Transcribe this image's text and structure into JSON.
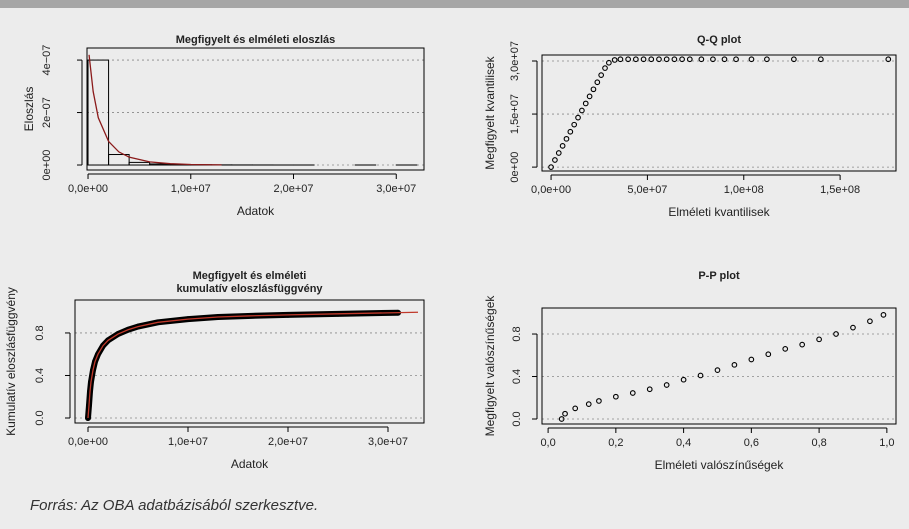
{
  "chart_data": [
    {
      "type": "histogram",
      "title": "Megfigyelt és elméleti eloszlás",
      "x_label": "Adatok",
      "y_label": "Eloszlás",
      "bins": [
        0,
        2000000,
        4000000,
        6000000,
        8000000,
        10000000,
        12000000,
        14000000,
        16000000,
        18000000,
        20000000,
        22000000,
        24000000,
        26000000,
        28000000,
        30000000,
        32000000
      ],
      "values": [
        4e-07,
        4e-08,
        1e-08,
        4e-09,
        2e-09,
        1e-09,
        5e-10,
        3e-10,
        2e-10,
        1e-10,
        1e-10,
        0,
        0,
        1e-10,
        0,
        1e-10
      ],
      "color": "#000000",
      "series": [
        {
          "type": "line",
          "color": "#8b1a1a",
          "x": [
            100000,
            500000,
            1000000,
            2000000,
            3000000,
            4000000,
            6000000,
            8000000,
            10000000,
            13000000
          ],
          "values": [
            4.2e-07,
            2.8e-07,
            1.8e-07,
            9e-08,
            5e-08,
            3e-08,
            1.2e-08,
            5e-09,
            2e-09,
            5e-10
          ]
        }
      ],
      "xlim": [
        -100000,
        32700000
      ],
      "ylim": [
        -1.9e-08,
        4.46e-07
      ],
      "xticks": [
        {
          "value": 0,
          "label": "0,0e+00"
        },
        {
          "value": 10000000,
          "label": "1,0e+07"
        },
        {
          "value": 20000000,
          "label": "2,0e+07"
        },
        {
          "value": 30000000,
          "label": "3,0e+07"
        }
      ],
      "yticks": [
        {
          "value": 0,
          "label": "0e+00"
        },
        {
          "value": 2e-07,
          "label": "2e−07"
        },
        {
          "value": 4e-07,
          "label": "4e−07"
        }
      ],
      "grid": true
    },
    {
      "type": "scatter",
      "title": "Q-Q plot",
      "x_label": "Elméleti kvantilisek",
      "y_label": "Megfigyelt kvantilisek",
      "series": [
        {
          "type": "scatter",
          "color": "#000000",
          "x": [
            0,
            2000000,
            4000000,
            6000000,
            8000000,
            10000000,
            12000000,
            14000000,
            16000000,
            18000000,
            20000000,
            22000000,
            24000000,
            26000000,
            28000000,
            30000000,
            33000000,
            36000000,
            40000000,
            44000000,
            48000000,
            52000000,
            56000000,
            60000000,
            64000000,
            68000000,
            72000000,
            78000000,
            84000000,
            90000000,
            96000000,
            104000000,
            112000000,
            126000000,
            140000000,
            175000000
          ],
          "values": [
            0,
            2000000,
            4000000,
            6000000,
            8000000,
            10000000,
            12000000,
            14000000,
            16000000,
            18000000,
            20000000,
            22000000,
            24000000,
            26000000,
            28000000,
            29500000,
            30300000,
            30500000,
            30500000,
            30500000,
            30500000,
            30500000,
            30500000,
            30500000,
            30500000,
            30500000,
            30500000,
            30500000,
            30500000,
            30500000,
            30500000,
            30500000,
            30500000,
            30500000,
            30500000,
            30500000
          ]
        }
      ],
      "xlim": [
        -4700000,
        179000000
      ],
      "ylim": [
        -1100000,
        31700000
      ],
      "xticks": [
        {
          "value": 0,
          "label": "0,0e+00"
        },
        {
          "value": 50000000,
          "label": "5,0e+07"
        },
        {
          "value": 100000000,
          "label": "1,0e+08"
        },
        {
          "value": 150000000,
          "label": "1,5e+08"
        }
      ],
      "yticks": [
        {
          "value": 0,
          "label": "0e+00"
        },
        {
          "value": 15000000,
          "label": "1,5e+07"
        },
        {
          "value": 30000000,
          "label": "3,0e+07"
        }
      ],
      "grid": true
    },
    {
      "type": "scatter",
      "title": [
        "Megfigyelt és elméleti",
        "kumulatív eloszlásfüggvény"
      ],
      "x_label": "Adatok",
      "y_label": "Kumulatív eloszlásfüggvény",
      "series": [
        {
          "type": "scatter",
          "color": "#000000",
          "x": [
            0,
            100000,
            200000,
            300000,
            500000,
            700000,
            1000000,
            1500000,
            2000000,
            3000000,
            4000000,
            5000000,
            7000000,
            10000000,
            13000000,
            16000000,
            20000000,
            25000000,
            31000000
          ],
          "values": [
            0,
            0.12,
            0.25,
            0.34,
            0.45,
            0.53,
            0.6,
            0.68,
            0.73,
            0.79,
            0.83,
            0.86,
            0.9,
            0.93,
            0.95,
            0.96,
            0.97,
            0.98,
            0.99
          ]
        },
        {
          "type": "line",
          "color": "#c0392b",
          "x": [
            0,
            100000,
            200000,
            300000,
            500000,
            700000,
            1000000,
            1500000,
            2000000,
            3000000,
            4000000,
            5000000,
            7000000,
            10000000,
            13000000,
            16000000,
            20000000,
            25000000,
            33000000
          ],
          "values": [
            0,
            0.12,
            0.25,
            0.34,
            0.45,
            0.53,
            0.6,
            0.68,
            0.73,
            0.79,
            0.83,
            0.86,
            0.9,
            0.93,
            0.95,
            0.96,
            0.97,
            0.98,
            0.995
          ]
        }
      ],
      "xlim": [
        -1300000,
        33600000
      ],
      "ylim": [
        -0.047,
        1.11
      ],
      "xticks": [
        {
          "value": 0,
          "label": "0,0e+00"
        },
        {
          "value": 10000000,
          "label": "1,0e+07"
        },
        {
          "value": 20000000,
          "label": "2,0e+07"
        },
        {
          "value": 30000000,
          "label": "3,0e+07"
        }
      ],
      "yticks": [
        {
          "value": 0,
          "label": "0.0"
        },
        0.4,
        0.8
      ],
      "grid": true
    },
    {
      "type": "scatter",
      "title": "P-P plot",
      "x_label": "Elméleti valószínűségek",
      "y_label": "Megfigyelt valószínűségek",
      "series": [
        {
          "type": "scatter",
          "color": "#000000",
          "x": [
            0.04,
            0.05,
            0.08,
            0.12,
            0.15,
            0.2,
            0.25,
            0.3,
            0.35,
            0.4,
            0.45,
            0.5,
            0.55,
            0.6,
            0.65,
            0.7,
            0.75,
            0.8,
            0.85,
            0.9,
            0.95,
            0.99
          ],
          "values": [
            0,
            0.05,
            0.1,
            0.14,
            0.17,
            0.21,
            0.245,
            0.28,
            0.32,
            0.37,
            0.41,
            0.46,
            0.51,
            0.56,
            0.61,
            0.66,
            0.7,
            0.75,
            0.8,
            0.86,
            0.92,
            0.98
          ]
        }
      ],
      "xlim": [
        -0.018,
        1.027
      ],
      "ylim": [
        -0.047,
        1.045
      ],
      "xticks": [
        {
          "value": 0,
          "label": "0,0"
        },
        {
          "value": 0.2,
          "label": "0,2"
        },
        {
          "value": 0.4,
          "label": "0,4"
        },
        {
          "value": 0.6,
          "label": "0,6"
        },
        {
          "value": 0.8,
          "label": "0,8"
        },
        {
          "value": 1,
          "label": "1,0"
        }
      ],
      "yticks": [
        {
          "value": 0,
          "label": "0.0"
        },
        0.4,
        0.8
      ],
      "grid": true
    }
  ],
  "source": "Forrás: Az OBA adatbázisából szerkesztve."
}
